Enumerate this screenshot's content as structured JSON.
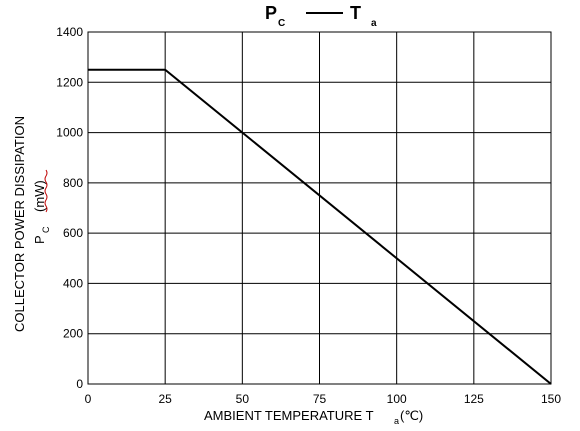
{
  "chart_data": {
    "type": "line",
    "title": {
      "left_main": "P",
      "left_sub": "C",
      "dash": "——",
      "right_main": "T",
      "right_sub": "a"
    },
    "xlabel": {
      "text": "AMBIENT TEMPERATURE T",
      "sub": "a",
      "unit": "(℃)"
    },
    "ylabel": {
      "line1": "COLLECTOR POWER DISSIPATION",
      "sym_main": "P",
      "sym_sub": "C",
      "unit": "(mW)"
    },
    "xlim": [
      0,
      150
    ],
    "ylim": [
      0,
      1400
    ],
    "x_ticks": [
      0,
      25,
      50,
      75,
      100,
      125,
      150
    ],
    "y_ticks": [
      0,
      200,
      400,
      600,
      800,
      1000,
      1200,
      1400
    ],
    "x_tick_labels": [
      "0",
      "25",
      "50",
      "75",
      "100",
      "125",
      "150"
    ],
    "y_tick_labels": [
      "0",
      "200",
      "400",
      "600",
      "800",
      "1000",
      "1200",
      "1400"
    ],
    "grid": true,
    "series": [
      {
        "x": [
          0,
          25,
          150
        ],
        "y": [
          1250,
          1250,
          0
        ],
        "color": "#000000"
      }
    ]
  }
}
